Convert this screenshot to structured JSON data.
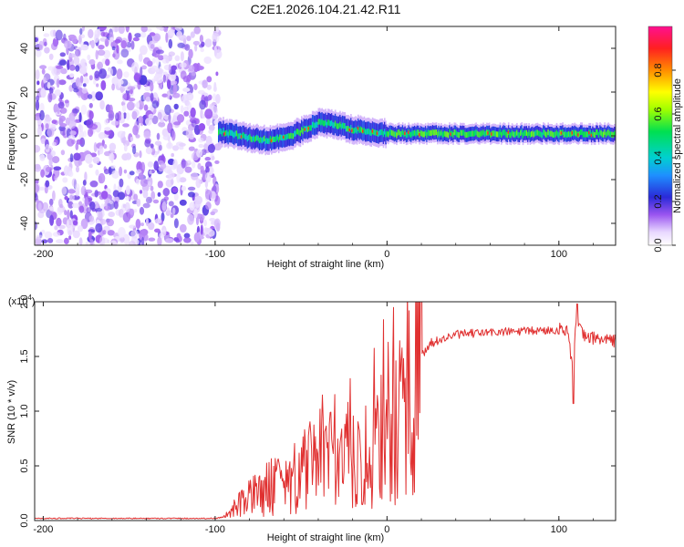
{
  "title": "C2E1.2026.104.21.42.R11",
  "chart_data": [
    {
      "type": "heatmap",
      "xlabel": "Height of straight line (km)",
      "ylabel": "Frequency (Hz)",
      "xlim": [
        -205,
        133
      ],
      "ylim": [
        -50,
        50
      ],
      "x_ticks": [
        -200,
        -100,
        0,
        100
      ],
      "y_ticks": [
        -40,
        -20,
        0,
        20,
        40
      ],
      "colorbar": {
        "label": "Normalized spectral amplitude",
        "range": [
          0,
          1
        ],
        "ticks": [
          "0.0",
          "0.2",
          "0.4",
          "0.6",
          "0.8"
        ]
      },
      "noise_region_x": [
        -205,
        -98
      ],
      "ridge": {
        "x": [
          -98,
          -90,
          -80,
          -70,
          -60,
          -50,
          -40,
          -30,
          -20,
          -10,
          0,
          10,
          20,
          40,
          60,
          80,
          100,
          110,
          133
        ],
        "freq_hz": [
          2,
          1,
          -1,
          -2,
          -1,
          2,
          6,
          5,
          3,
          2,
          1,
          1,
          1,
          1,
          1,
          1,
          1,
          1,
          1
        ]
      }
    },
    {
      "type": "line",
      "xlabel": "Height of straight line (km)",
      "ylabel": "SNR (10 * v/v)",
      "y_multiplier": "(x10^4)",
      "y_multiplier_base": "(x10",
      "y_multiplier_exp": "4",
      "xlim": [
        -205,
        133
      ],
      "ylim": [
        0,
        2.0
      ],
      "x_ticks": [
        -200,
        -100,
        0,
        100
      ],
      "y_ticks": [
        "0.0",
        "0.5",
        "1.0",
        "1.5",
        "2.0"
      ],
      "color": "#e03030",
      "series": [
        {
          "name": "SNR",
          "x": [
            -205,
            -100,
            -92,
            -85,
            -75,
            -65,
            -55,
            -45,
            -35,
            -25,
            -15,
            -5,
            5,
            12,
            18,
            25,
            40,
            60,
            80,
            95,
            105,
            108,
            110,
            115,
            125,
            133
          ],
          "y": [
            0.02,
            0.02,
            0.04,
            0.15,
            0.25,
            0.33,
            0.4,
            0.48,
            0.52,
            0.55,
            0.6,
            0.72,
            1.0,
            1.15,
            1.45,
            1.62,
            1.7,
            1.72,
            1.73,
            1.74,
            1.75,
            1.4,
            1.8,
            1.68,
            1.66,
            1.64
          ]
        }
      ]
    }
  ]
}
